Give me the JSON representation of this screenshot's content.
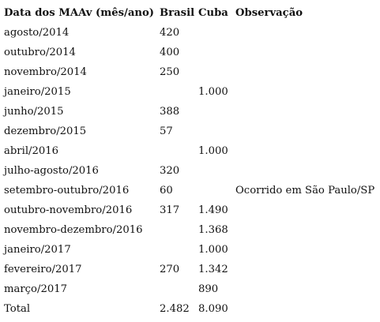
{
  "table": {
    "headers": [
      "Data dos MAAv (mês/ano)",
      "Brasil",
      "Cuba",
      "Observação"
    ],
    "rows": [
      [
        "agosto/2014",
        "420",
        "",
        ""
      ],
      [
        "outubro/2014",
        "400",
        "",
        ""
      ],
      [
        "novembro/2014",
        "250",
        "",
        ""
      ],
      [
        "janeiro/2015",
        "",
        "1.000",
        ""
      ],
      [
        "junho/2015",
        "388",
        "",
        ""
      ],
      [
        "dezembro/2015",
        "57",
        "",
        ""
      ],
      [
        "abril/2016",
        "",
        "1.000",
        ""
      ],
      [
        "julho-agosto/2016",
        "320",
        "",
        ""
      ],
      [
        "setembro-outubro/2016",
        "60",
        "",
        "Ocorrido em São Paulo/SP"
      ],
      [
        "outubro-novembro/2016",
        "317",
        "1.490",
        ""
      ],
      [
        "novembro-dezembro/2016",
        "",
        "1.368",
        ""
      ],
      [
        "janeiro/2017",
        "",
        "1.000",
        ""
      ],
      [
        "fevereiro/2017",
        "270",
        "1.342",
        ""
      ],
      [
        "março/2017",
        "",
        "890",
        ""
      ]
    ],
    "total": [
      "Total",
      "2.482",
      "8.090",
      ""
    ]
  }
}
